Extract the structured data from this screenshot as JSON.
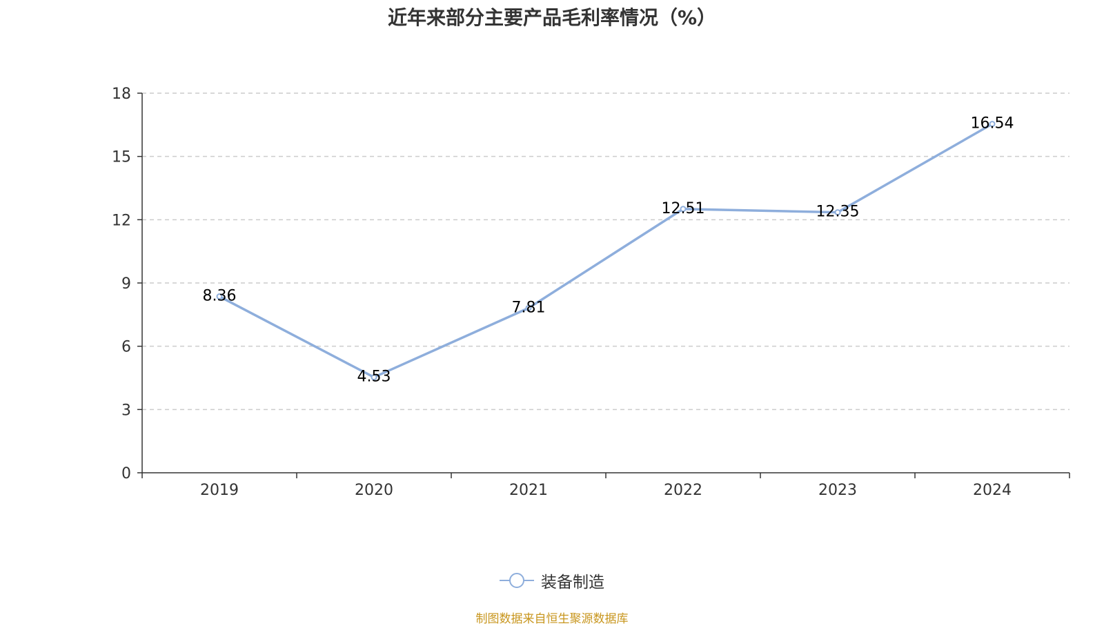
{
  "title": "近年来部分主要产品毛利率情况（%）",
  "source_note": "制图数据来自恒生聚源数据库",
  "colors": {
    "series": "#8eaedc",
    "axis": "#333333",
    "grid": "#cccccc",
    "source": "#c8961e"
  },
  "chart_data": {
    "type": "line",
    "title": "近年来部分主要产品毛利率情况（%）",
    "xlabel": "",
    "ylabel": "",
    "categories": [
      "2019",
      "2020",
      "2021",
      "2022",
      "2023",
      "2024"
    ],
    "series": [
      {
        "name": "装备制造",
        "values": [
          8.36,
          4.53,
          7.81,
          12.51,
          12.35,
          16.54
        ],
        "labels": [
          "8.36",
          "4.53",
          "7.81",
          "12.51",
          "12.35",
          "16.54"
        ]
      }
    ],
    "ylim": [
      0,
      18
    ],
    "yticks": [
      "0",
      "3",
      "6",
      "9",
      "12",
      "15",
      "18"
    ],
    "grid": true,
    "legend_position": "bottom"
  }
}
